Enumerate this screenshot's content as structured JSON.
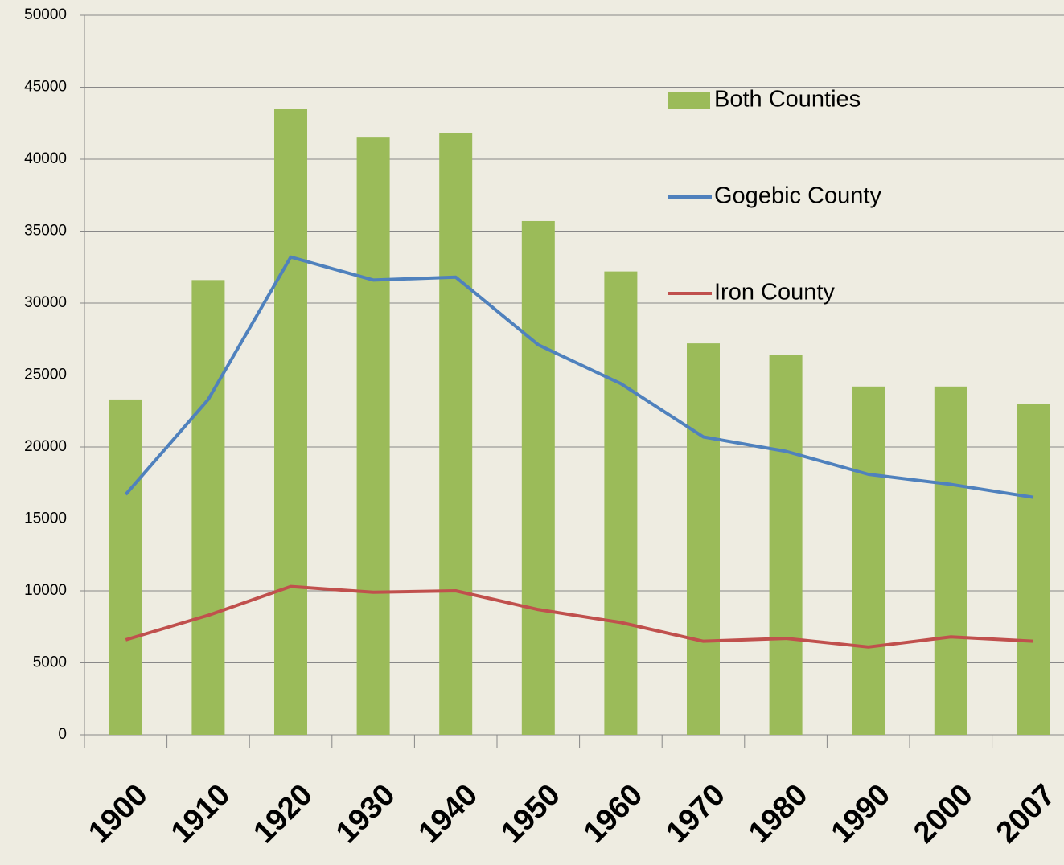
{
  "chart_data": {
    "type": "bar_line",
    "categories": [
      "1900",
      "1910",
      "1920",
      "1930",
      "1940",
      "1950",
      "1960",
      "1970",
      "1980",
      "1990",
      "2000",
      "2007"
    ],
    "series": [
      {
        "name": "Both Counties",
        "type": "bar",
        "color": "#9bbb59",
        "values": [
          23300,
          31600,
          43500,
          41500,
          41800,
          35700,
          32200,
          27200,
          26400,
          24200,
          24200,
          23000
        ]
      },
      {
        "name": "Gogebic County",
        "type": "line",
        "color": "#4f81bd",
        "values": [
          16700,
          23300,
          33200,
          31600,
          31800,
          27100,
          24400,
          20700,
          19700,
          18100,
          17400,
          16500
        ]
      },
      {
        "name": "Iron County",
        "type": "line",
        "color": "#c0504d",
        "values": [
          6600,
          8300,
          10300,
          9900,
          10000,
          8700,
          7800,
          6500,
          6700,
          6100,
          6800,
          6500
        ]
      }
    ],
    "ylim": [
      0,
      50000
    ],
    "yticks": [
      0,
      5000,
      10000,
      15000,
      20000,
      25000,
      30000,
      35000,
      40000,
      45000,
      50000
    ],
    "grid": true,
    "legend": "upper right"
  }
}
